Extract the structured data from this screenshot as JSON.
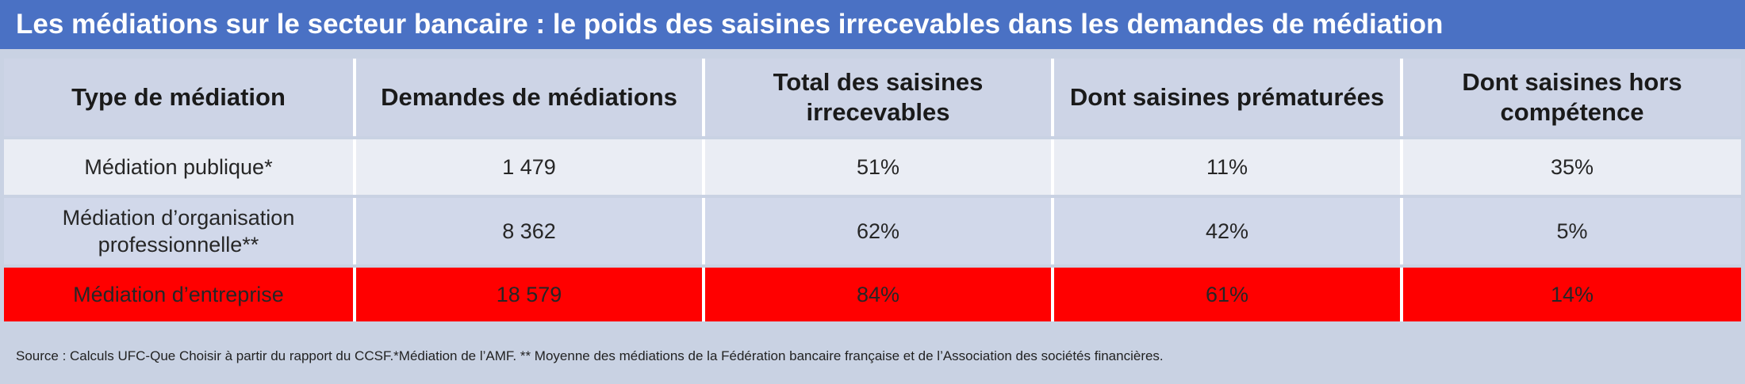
{
  "title": "Les médiations sur le secteur bancaire : le poids des saisines irrecevables dans les demandes de médiation",
  "colors": {
    "title_bg": "#4a71c4",
    "header_bg": "#cdd4e6",
    "row_light": "#eaedf4",
    "row_blue": "#d1d8ea",
    "highlight_row": "#ff0000",
    "highlight_text": "#b00000"
  },
  "table": {
    "headers": [
      "Type de médiation",
      "Demandes de médiations",
      "Total des saisines irrecevables",
      "Dont saisines prématurées",
      "Dont saisines hors compétence"
    ],
    "rows": [
      [
        "Médiation publique*",
        "1 479",
        "51%",
        "11%",
        "35%"
      ],
      [
        "Médiation d’organisation professionnelle**",
        "8 362",
        "62%",
        "42%",
        "5%"
      ],
      [
        "Médiation d’entreprise",
        "18 579",
        "84%",
        "61%",
        "14%"
      ]
    ]
  },
  "source": "Source : Calculs UFC-Que Choisir à partir du rapport du CCSF.*Médiation de l’AMF. ** Moyenne des médiations de la Fédération bancaire française et de l’Association des sociétés financières."
}
